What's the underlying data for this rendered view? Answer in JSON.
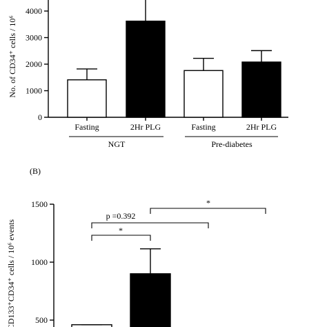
{
  "chart_data": [
    {
      "panel_label": "",
      "type": "bar",
      "ylabel": "No. of CD34⁺ cells / 10⁶",
      "ylim": [
        0,
        4600
      ],
      "yticks": [
        "0",
        "1000",
        "2000",
        "3000",
        "4000"
      ],
      "categories": [
        "Fasting",
        "2Hr PLG",
        "Fasting",
        "2Hr PLG"
      ],
      "groups": [
        "NGT",
        "Pre-diabetes"
      ],
      "values": [
        1410,
        3620,
        1760,
        2080
      ],
      "errors": [
        410,
        900,
        460,
        430
      ],
      "fills": [
        "#ffffff",
        "#000000",
        "#ffffff",
        "#000000"
      ]
    },
    {
      "panel_label": "(B)",
      "type": "bar",
      "ylabel": "CD133⁺CD34⁺ cells / 10⁶ events",
      "ylim": [
        430,
        1500
      ],
      "yticks": [
        "500",
        "1000",
        "1500"
      ],
      "values": [
        460,
        900
      ],
      "errors": [
        0,
        215
      ],
      "fills": [
        "#ffffff",
        "#000000"
      ],
      "annotations": [
        "p =0.392",
        "*",
        "*"
      ]
    }
  ]
}
